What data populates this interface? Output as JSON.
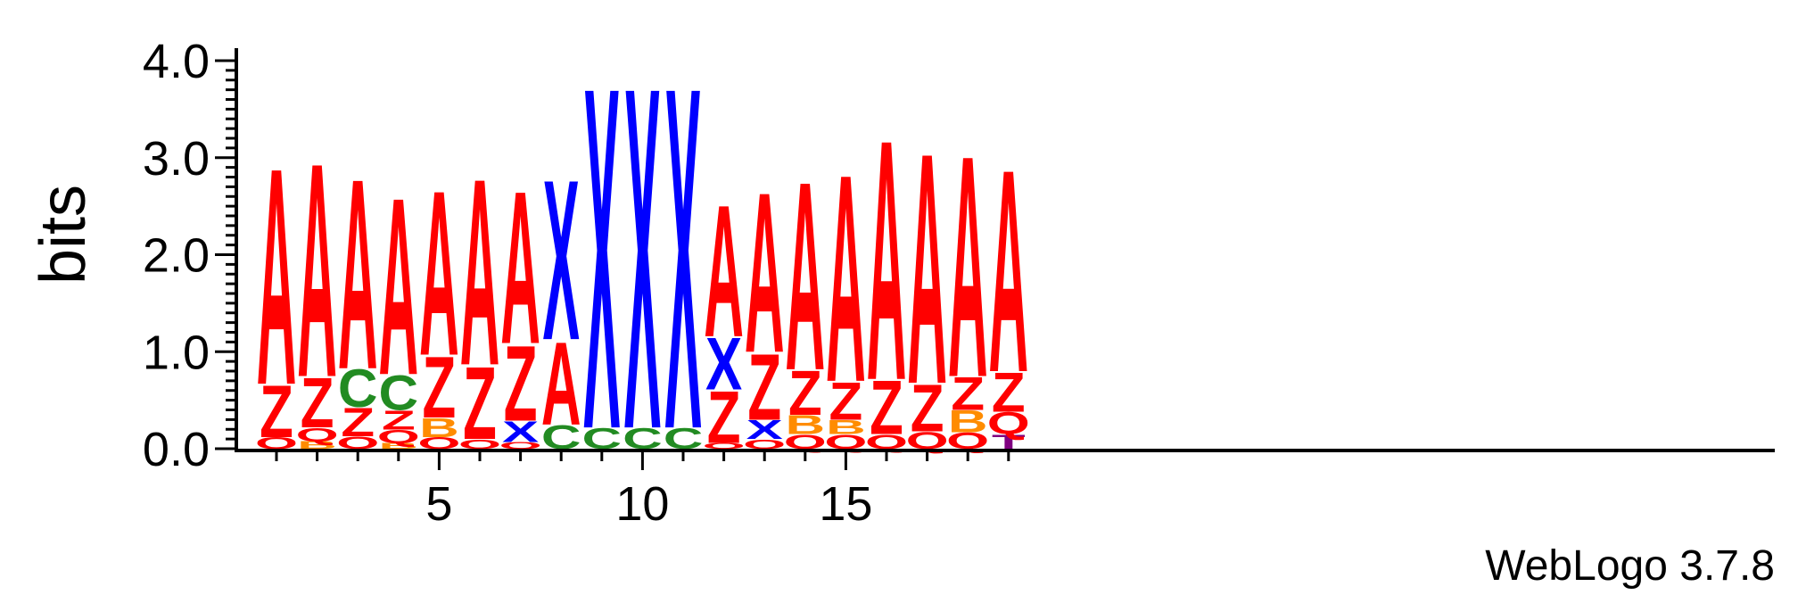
{
  "chart_data": {
    "type": "sequence-logo",
    "ylabel": "bits",
    "ylim": [
      0,
      4.0
    ],
    "y_ticks": [
      "0.0",
      "1.0",
      "2.0",
      "3.0",
      "4.0"
    ],
    "x_ticks": [
      5,
      10,
      15
    ],
    "positions": 19,
    "colors": {
      "A": "#ff0000",
      "Z": "#ff0000",
      "Q": "#ff0000",
      "X": "#0000ff",
      "C": "#228b22",
      "B": "#ff8c00",
      "T": "#800080"
    },
    "stacks": [
      {
        "pos": 1,
        "letters": [
          [
            "Q",
            0.12
          ],
          [
            "Z",
            0.55
          ],
          [
            "A",
            2.3
          ]
        ]
      },
      {
        "pos": 2,
        "letters": [
          [
            "B",
            0.08
          ],
          [
            "Q",
            0.14
          ],
          [
            "Z",
            0.53
          ],
          [
            "A",
            2.27
          ]
        ]
      },
      {
        "pos": 3,
        "letters": [
          [
            "Q",
            0.13
          ],
          [
            "Z",
            0.3
          ],
          [
            "C",
            0.4
          ],
          [
            "A",
            2.02
          ]
        ]
      },
      {
        "pos": 4,
        "letters": [
          [
            "B",
            0.06
          ],
          [
            "Q",
            0.14
          ],
          [
            "Z",
            0.2
          ],
          [
            "C",
            0.37
          ],
          [
            "A",
            1.88
          ]
        ]
      },
      {
        "pos": 5,
        "letters": [
          [
            "Q",
            0.12
          ],
          [
            "B",
            0.2
          ],
          [
            "Z",
            0.65
          ],
          [
            "A",
            1.75
          ]
        ]
      },
      {
        "pos": 6,
        "letters": [
          [
            "Q",
            0.1
          ],
          [
            "Z",
            0.77
          ],
          [
            "A",
            1.98
          ]
        ]
      },
      {
        "pos": 7,
        "letters": [
          [
            "Q",
            0.07
          ],
          [
            "X",
            0.22
          ],
          [
            "Z",
            0.8
          ],
          [
            "A",
            1.62
          ]
        ]
      },
      {
        "pos": 8,
        "letters": [
          [
            "C",
            0.25
          ],
          [
            "A",
            0.88
          ],
          [
            "X",
            1.7
          ]
        ]
      },
      {
        "pos": 9,
        "letters": [
          [
            "C",
            0.22
          ],
          [
            "X",
            3.63
          ]
        ]
      },
      {
        "pos": 10,
        "letters": [
          [
            "C",
            0.22
          ],
          [
            "X",
            3.63
          ]
        ]
      },
      {
        "pos": 11,
        "letters": [
          [
            "C",
            0.22
          ],
          [
            "X",
            3.63
          ]
        ]
      },
      {
        "pos": 12,
        "letters": [
          [
            "Q",
            0.06
          ],
          [
            "Z",
            0.55
          ],
          [
            "X",
            0.55
          ],
          [
            "A",
            1.4
          ]
        ]
      },
      {
        "pos": 13,
        "letters": [
          [
            "Q",
            0.1
          ],
          [
            "X",
            0.2
          ],
          [
            "Z",
            0.7
          ],
          [
            "A",
            1.7
          ]
        ]
      },
      {
        "pos": 14,
        "letters": [
          [
            "Q",
            0.15
          ],
          [
            "B",
            0.2
          ],
          [
            "Z",
            0.47
          ],
          [
            "A",
            2.0
          ]
        ]
      },
      {
        "pos": 15,
        "letters": [
          [
            "Q",
            0.15
          ],
          [
            "B",
            0.15
          ],
          [
            "Z",
            0.4
          ],
          [
            "A",
            2.2
          ]
        ]
      },
      {
        "pos": 16,
        "letters": [
          [
            "Q",
            0.15
          ],
          [
            "Z",
            0.57
          ],
          [
            "A",
            2.55
          ]
        ]
      },
      {
        "pos": 17,
        "letters": [
          [
            "Q",
            0.18
          ],
          [
            "Z",
            0.5
          ],
          [
            "A",
            2.45
          ]
        ]
      },
      {
        "pos": 18,
        "letters": [
          [
            "Q",
            0.17
          ],
          [
            "B",
            0.23
          ],
          [
            "Z",
            0.35
          ],
          [
            "A",
            2.35
          ]
        ]
      },
      {
        "pos": 19,
        "letters": [
          [
            "T",
            0.15
          ],
          [
            "Q",
            0.23
          ],
          [
            "Z",
            0.42
          ],
          [
            "A",
            2.15
          ]
        ]
      }
    ]
  },
  "footer": {
    "credit": "WebLogo 3.7.8"
  }
}
